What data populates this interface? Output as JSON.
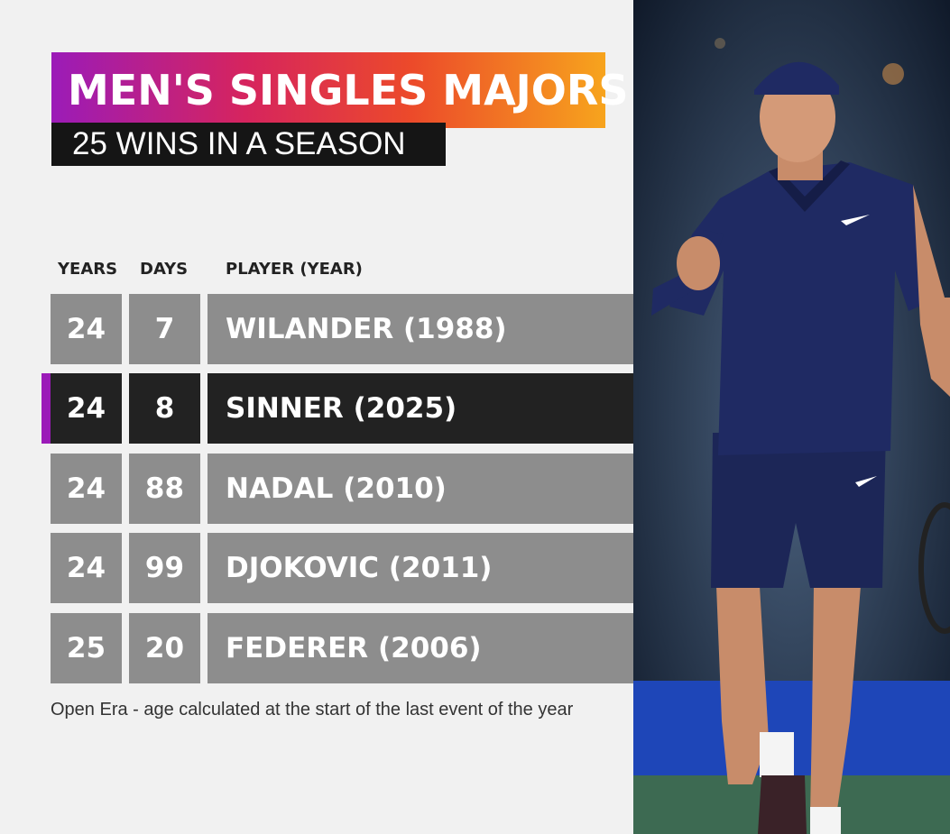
{
  "header": {
    "title": "MEN'S SINGLES MAJORS",
    "subtitle": "25 WINS IN A SEASON"
  },
  "columns": {
    "years": "YEARS",
    "days": "DAYS",
    "player": "PLAYER (YEAR)"
  },
  "rows": [
    {
      "years": "24",
      "days": "7",
      "player": "WILANDER (1988)",
      "highlight": false
    },
    {
      "years": "24",
      "days": "8",
      "player": "SINNER (2025)",
      "highlight": true
    },
    {
      "years": "24",
      "days": "88",
      "player": "NADAL (2010)",
      "highlight": false
    },
    {
      "years": "24",
      "days": "99",
      "player": "DJOKOVIC (2011)",
      "highlight": false
    },
    {
      "years": "25",
      "days": "20",
      "player": "FEDERER (2006)",
      "highlight": false
    }
  ],
  "footnote": "Open Era - age calculated at the start of the last event of the year",
  "colors": {
    "row_bg": "#8d8d8d",
    "highlight_bg": "#222222",
    "accent": "#9b1bb8",
    "gradient": [
      "#9b1bb8",
      "#d6245e",
      "#ec4a2a",
      "#f7a41d"
    ]
  }
}
